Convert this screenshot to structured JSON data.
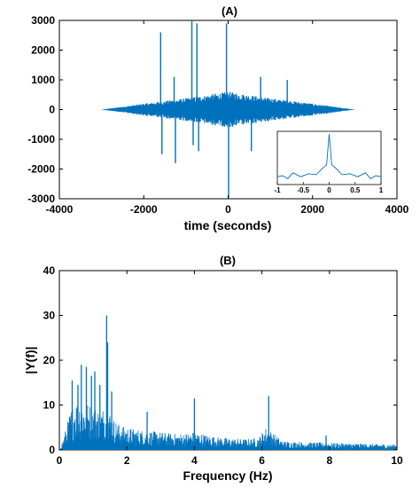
{
  "colors": {
    "series": "#0072BD",
    "axis": "#000000",
    "background": "#ffffff"
  },
  "chart_data": [
    {
      "type": "line",
      "title": "(A)",
      "xlabel": "time (seconds)",
      "ylabel": "",
      "xlim": [
        -4000,
        4000
      ],
      "ylim": [
        -3000,
        3000
      ],
      "xticks": [
        -4000,
        -2000,
        0,
        2000,
        4000
      ],
      "yticks": [
        -3000,
        -2000,
        -1000,
        0,
        1000,
        2000,
        3000
      ],
      "grid": false,
      "series": [
        {
          "description_envelope": [
            [
              -3000,
              0
            ],
            [
              -2000,
              200
            ],
            [
              -1000,
              380
            ],
            [
              0,
              600
            ],
            [
              1000,
              380
            ],
            [
              2000,
              200
            ],
            [
              3000,
              0
            ]
          ],
          "spikes": [
            {
              "x": -1600,
              "y": 2600
            },
            {
              "x": -1570,
              "y": -1500
            },
            {
              "x": -1280,
              "y": 1100
            },
            {
              "x": -1250,
              "y": -1800
            },
            {
              "x": -860,
              "y": 3000
            },
            {
              "x": -830,
              "y": -1200
            },
            {
              "x": -740,
              "y": 2900
            },
            {
              "x": -700,
              "y": -1400
            },
            {
              "x": -40,
              "y": 2900
            },
            {
              "x": 10,
              "y": -3000
            },
            {
              "x": 550,
              "y": -1400
            },
            {
              "x": 770,
              "y": 1100
            },
            {
              "x": 1400,
              "y": 1000
            }
          ]
        }
      ],
      "inset": {
        "xlim": [
          -1,
          1
        ],
        "xticks": [
          -1,
          -0.5,
          0,
          0.5,
          1
        ],
        "tick_labels": [
          "-1",
          "-0.5",
          "0",
          "0.5",
          "1"
        ],
        "points": [
          [
            -1,
            0.14
          ],
          [
            -0.9,
            0.16
          ],
          [
            -0.8,
            0.1
          ],
          [
            -0.7,
            0.22
          ],
          [
            -0.55,
            0.14
          ],
          [
            -0.4,
            0.2
          ],
          [
            -0.25,
            0.18
          ],
          [
            -0.12,
            0.32
          ],
          [
            -0.05,
            0.38
          ],
          [
            0,
            1.0
          ],
          [
            0.05,
            0.38
          ],
          [
            0.12,
            0.32
          ],
          [
            0.25,
            0.18
          ],
          [
            0.4,
            0.2
          ],
          [
            0.55,
            0.14
          ],
          [
            0.7,
            0.22
          ],
          [
            0.8,
            0.1
          ],
          [
            0.9,
            0.16
          ],
          [
            1,
            0.14
          ]
        ]
      }
    },
    {
      "type": "line",
      "title": "(B)",
      "xlabel": "Frequency (Hz)",
      "ylabel": "|Y(f)|",
      "xlim": [
        0,
        10
      ],
      "ylim": [
        0,
        40
      ],
      "xticks": [
        0,
        2,
        4,
        6,
        8,
        10
      ],
      "yticks": [
        0,
        10,
        20,
        30,
        40
      ],
      "grid": false,
      "series": [
        {
          "envelope": [
            [
              0,
              0
            ],
            [
              0.1,
              2
            ],
            [
              0.2,
              5
            ],
            [
              0.3,
              8
            ],
            [
              0.4,
              10
            ],
            [
              0.5,
              11
            ],
            [
              0.6,
              11
            ],
            [
              0.8,
              10.5
            ],
            [
              1.0,
              10
            ],
            [
              1.2,
              9
            ],
            [
              1.4,
              10
            ],
            [
              1.6,
              7
            ],
            [
              1.8,
              5.5
            ],
            [
              2.0,
              5
            ],
            [
              2.5,
              4.3
            ],
            [
              3.0,
              4
            ],
            [
              3.5,
              3.5
            ],
            [
              4.0,
              4
            ],
            [
              4.5,
              3.1
            ],
            [
              5.0,
              2.6
            ],
            [
              5.5,
              2.4
            ],
            [
              5.9,
              2.7
            ],
            [
              6.1,
              5
            ],
            [
              6.3,
              4
            ],
            [
              6.6,
              2
            ],
            [
              7.0,
              1.8
            ],
            [
              8.0,
              1.6
            ],
            [
              9.0,
              1.4
            ],
            [
              10.0,
              1.2
            ]
          ],
          "peaks": [
            {
              "x": 0.38,
              "y": 15.5
            },
            {
              "x": 0.55,
              "y": 14.5
            },
            {
              "x": 0.65,
              "y": 19
            },
            {
              "x": 0.8,
              "y": 18.5
            },
            {
              "x": 0.95,
              "y": 16.5
            },
            {
              "x": 1.05,
              "y": 17.5
            },
            {
              "x": 1.2,
              "y": 14.5
            },
            {
              "x": 1.4,
              "y": 30
            },
            {
              "x": 1.43,
              "y": 24
            },
            {
              "x": 1.55,
              "y": 13
            },
            {
              "x": 2.6,
              "y": 8.5
            },
            {
              "x": 4.0,
              "y": 11.5
            },
            {
              "x": 6.2,
              "y": 12
            },
            {
              "x": 7.9,
              "y": 3.2
            }
          ]
        }
      ]
    }
  ]
}
